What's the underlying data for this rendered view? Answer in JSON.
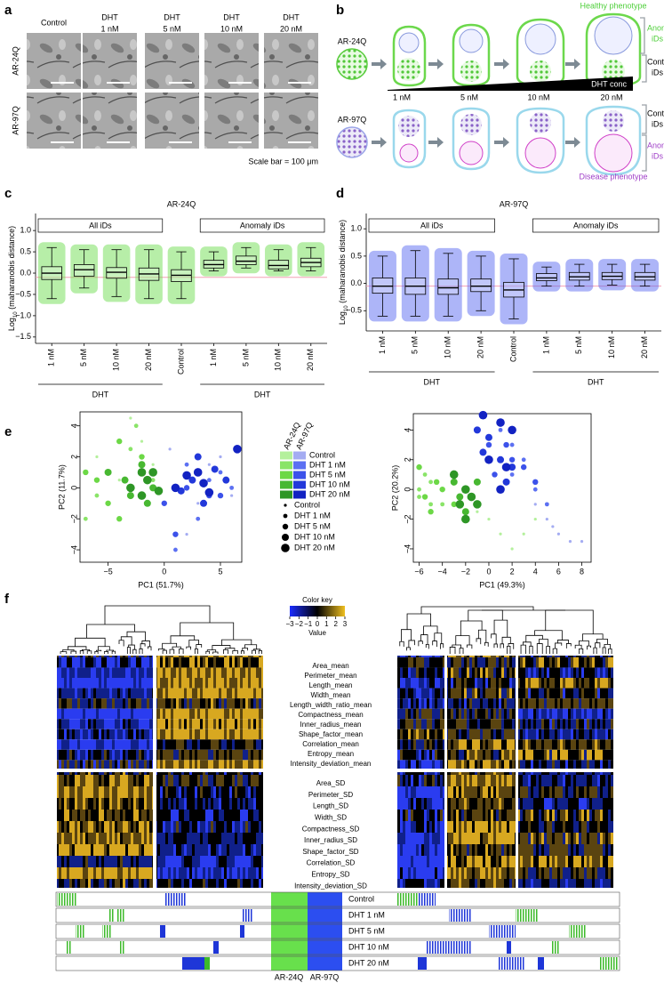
{
  "panels": {
    "a": {
      "label": "a",
      "columns": [
        [
          "Control"
        ],
        [
          "DHT",
          "1 nM"
        ],
        [
          "DHT",
          "5 nM"
        ],
        [
          "DHT",
          "10 nM"
        ],
        [
          "DHT",
          "20 nM"
        ]
      ],
      "rows": [
        "AR-24Q",
        "AR-97Q"
      ],
      "scale_note": "Scale bar = 100 μm"
    },
    "b": {
      "label": "b",
      "healthy": "Healthy phenotype",
      "disease": "Disease phenotype",
      "lines": [
        "AR-24Q",
        "AR-97Q"
      ],
      "anomaly_ids": [
        "Anomaly",
        "iDs"
      ],
      "control_ids": [
        "Control",
        "iDs"
      ],
      "conc_title": "DHT conc",
      "concs": [
        "1 nM",
        "5 nM",
        "10 nM",
        "20 nM"
      ]
    },
    "e": {
      "label": "e"
    },
    "f": {
      "label": "f",
      "color_key": {
        "title": "Color key",
        "xlabel": "Value",
        "colors": [
          "#1a2cff",
          "#000000",
          "#f0c020"
        ],
        "ticks": [
          {
            "value": -3,
            "label": "−3"
          },
          {
            "value": -2,
            "label": "−2"
          },
          {
            "value": -1,
            "label": "−1"
          },
          0,
          1,
          2,
          3
        ]
      },
      "rows_mean": [
        "Area_mean",
        "Perimeter_mean",
        "Length_mean",
        "Width_mean",
        "Length_width_ratio_mean",
        "Compactness_mean",
        "Inner_radius_mean",
        "Shape_factor_mean",
        "Correlation_mean",
        "Entropy_mean",
        "Intensity_deviation_mean"
      ],
      "rows_sd": [
        "Area_SD",
        "Perimeter_SD",
        "Length_SD",
        "Width_SD",
        "Compactness_SD",
        "Inner_radius_SD",
        "Shape_factor_SD",
        "Correlation_SD",
        "Entropy_SD",
        "Intensity_deviation_SD"
      ],
      "bar_rows": [
        "Control",
        "DHT 1 nM",
        "DHT 5 nM",
        "DHT 10 nM",
        "DHT 20 nM"
      ],
      "bar_groups": [
        "AR-24Q",
        "AR-97Q"
      ]
    }
  },
  "chart_data": [
    {
      "panel_label": "c",
      "type": "box",
      "title": "AR-24Q",
      "ylabel": [
        "Log",
        "10",
        " (maharanobis distance)"
      ],
      "strips": [
        "All iDs",
        "Anomaly iDs"
      ],
      "group_labels": [
        "DHT",
        "DHT"
      ],
      "categories": [
        "1 nM",
        "5 nM",
        "10 nM",
        "20 nM",
        "Control",
        "1 nM",
        "5 nM",
        "10 nM",
        "20 nM"
      ],
      "color": "#5fd93f",
      "boxes": [
        {
          "whislo": -0.6,
          "q1": -0.15,
          "med": 0.0,
          "q3": 0.15,
          "whishi": 0.6
        },
        {
          "whislo": -0.35,
          "q1": -0.07,
          "med": 0.08,
          "q3": 0.2,
          "whishi": 0.55
        },
        {
          "whislo": -0.55,
          "q1": -0.12,
          "med": 0.02,
          "q3": 0.13,
          "whishi": 0.55
        },
        {
          "whislo": -0.6,
          "q1": -0.17,
          "med": -0.02,
          "q3": 0.12,
          "whishi": 0.55
        },
        {
          "whislo": -0.6,
          "q1": -0.2,
          "med": -0.05,
          "q3": 0.08,
          "whishi": 0.5
        },
        {
          "whislo": 0.05,
          "q1": 0.12,
          "med": 0.2,
          "q3": 0.3,
          "whishi": 0.5
        },
        {
          "whislo": 0.12,
          "q1": 0.2,
          "med": 0.28,
          "q3": 0.4,
          "whishi": 0.6
        },
        {
          "whislo": 0.05,
          "q1": 0.1,
          "med": 0.18,
          "q3": 0.3,
          "whishi": 0.55
        },
        {
          "whislo": 0.05,
          "q1": 0.15,
          "med": 0.25,
          "q3": 0.35,
          "whishi": 0.6
        }
      ],
      "reference_line": -0.1,
      "reference_color": "#f4a0b4",
      "ylim": [
        -1.65,
        1.4
      ],
      "yticks": [
        {
          "value": 1,
          "label": "1.0"
        },
        0.5,
        {
          "value": 0,
          "label": "0.0"
        },
        {
          "value": -0.5,
          "label": "−0.5"
        },
        {
          "value": -1,
          "label": "−1.0"
        },
        {
          "value": -1.5,
          "label": "−1.5"
        }
      ]
    },
    {
      "panel_label": "d",
      "type": "box",
      "title": "AR-97Q",
      "ylabel": [
        "Log",
        "10",
        " (maharanobis distance)"
      ],
      "strips": [
        "All iDs",
        "Anomaly iDs"
      ],
      "group_labels": [
        "DHT",
        "DHT"
      ],
      "categories": [
        "1 nM",
        "5 nM",
        "10 nM",
        "20 nM",
        "Control",
        "1 nM",
        "5 nM",
        "10 nM",
        "20 nM"
      ],
      "color": "#4a5cf0",
      "boxes": [
        {
          "whislo": -0.6,
          "q1": -0.18,
          "med": -0.05,
          "q3": 0.1,
          "whishi": 0.5
        },
        {
          "whislo": -0.6,
          "q1": -0.2,
          "med": -0.05,
          "q3": 0.1,
          "whishi": 0.6
        },
        {
          "whislo": -0.6,
          "q1": -0.2,
          "med": -0.08,
          "q3": 0.08,
          "whishi": 0.55
        },
        {
          "whislo": -0.5,
          "q1": -0.15,
          "med": -0.05,
          "q3": 0.08,
          "whishi": 0.5
        },
        {
          "whislo": -0.65,
          "q1": -0.25,
          "med": -0.12,
          "q3": 0.02,
          "whishi": 0.45
        },
        {
          "whislo": -0.05,
          "q1": 0.05,
          "med": 0.1,
          "q3": 0.18,
          "whishi": 0.3
        },
        {
          "whislo": -0.05,
          "q1": 0.06,
          "med": 0.12,
          "q3": 0.2,
          "whishi": 0.35
        },
        {
          "whislo": -0.03,
          "q1": 0.07,
          "med": 0.13,
          "q3": 0.2,
          "whishi": 0.35
        },
        {
          "whislo": -0.05,
          "q1": 0.06,
          "med": 0.12,
          "q3": 0.2,
          "whishi": 0.35
        }
      ],
      "reference_line": -0.05,
      "reference_color": "#f4a0b4",
      "ylim": [
        -0.87,
        1.28
      ],
      "yticks": [
        {
          "value": 1,
          "label": "1.0"
        },
        0.5,
        {
          "value": 0,
          "label": "0.0"
        },
        {
          "value": -0.5,
          "label": "−0.5"
        }
      ]
    },
    {
      "type": "scatter",
      "xlabel": "PC1 (51.7%)",
      "ylabel": "PC2 (11.7%)",
      "groups": [
        "AR-24Q",
        "AR-97Q"
      ],
      "xlim": [
        -7.5,
        6.9
      ],
      "ylim": [
        -4.8,
        4.9
      ],
      "xticks": [
        {
          "value": -5,
          "label": "−5"
        },
        0,
        5
      ],
      "yticks": [
        4,
        2,
        0,
        {
          "value": -2,
          "label": "−2"
        },
        {
          "value": -4,
          "label": "−4"
        }
      ],
      "series": [
        {
          "name": "Control",
          "group": "AR-24Q",
          "color": "#b4f09c",
          "x": [
            -3,
            -2,
            -6,
            -1,
            -4,
            0
          ],
          "y": [
            4.5,
            3,
            2,
            1.5,
            0.5,
            -1
          ]
        },
        {
          "name": "DHT 1 nM",
          "group": "AR-24Q",
          "color": "#8ae468",
          "x": [
            -2.5,
            -7,
            -5,
            -3,
            -1,
            -6
          ],
          "y": [
            4,
            -2,
            1,
            2.5,
            0.5,
            -0.5
          ]
        },
        {
          "name": "DHT 5 nM",
          "group": "AR-24Q",
          "color": "#6cd846",
          "x": [
            -7,
            -5,
            -4,
            -2,
            -6,
            -4
          ],
          "y": [
            1,
            -1,
            3,
            2,
            0.5,
            -2
          ]
        },
        {
          "name": "DHT 10 nM",
          "group": "AR-24Q",
          "color": "#48b832",
          "x": [
            -3,
            -2,
            -1,
            -5,
            -3.5,
            -1.5
          ],
          "y": [
            -0.5,
            1.5,
            0,
            1,
            0.5,
            -1
          ]
        },
        {
          "name": "DHT 20 nM",
          "group": "AR-24Q",
          "color": "#2e9626",
          "x": [
            -3,
            -2,
            -1,
            -2,
            -0.5,
            -1.5
          ],
          "y": [
            0,
            -0.5,
            1,
            1,
            -0.2,
            0.5
          ]
        },
        {
          "name": "Control",
          "group": "AR-97Q",
          "color": "#a4acf2",
          "x": [
            2,
            6,
            4,
            3,
            5,
            0.5
          ],
          "y": [
            -3,
            -0.5,
            1.5,
            -1,
            2,
            2.5
          ]
        },
        {
          "name": "DHT 1 nM",
          "group": "AR-97Q",
          "color": "#5c70f2",
          "x": [
            3,
            5,
            2,
            6,
            4,
            1
          ],
          "y": [
            -2,
            1,
            1.5,
            0,
            0.5,
            -4
          ]
        },
        {
          "name": "DHT 5 nM",
          "group": "AR-97Q",
          "color": "#3c52ea",
          "x": [
            2,
            4,
            1,
            3,
            5,
            0
          ],
          "y": [
            0,
            -0.5,
            -3,
            1,
            -0.5,
            -1
          ]
        },
        {
          "name": "DHT 10 nM",
          "group": "AR-97Q",
          "color": "#2238da",
          "x": [
            3.5,
            2.5,
            4.5,
            1.5,
            3,
            5.5
          ],
          "y": [
            -1,
            0.5,
            1.2,
            -0.2,
            2,
            0.5
          ]
        },
        {
          "name": "DHT 20 nM",
          "group": "AR-97Q",
          "color": "#1222c2",
          "x": [
            1,
            3,
            4,
            6.5,
            2,
            3.5
          ],
          "y": [
            0,
            1,
            -0.3,
            2.5,
            0.8,
            0.3
          ]
        }
      ]
    },
    {
      "type": "scatter",
      "xlabel": "PC1 (49.3%)",
      "ylabel": "PC2 (20.2%)",
      "groups": [
        "AR-24Q",
        "AR-97Q"
      ],
      "xlim": [
        -6.5,
        8.8
      ],
      "ylim": [
        -4.9,
        5.1
      ],
      "xticks": [
        {
          "value": -6,
          "label": "−6"
        },
        {
          "value": -4,
          "label": "−4"
        },
        {
          "value": -2,
          "label": "−2"
        },
        0,
        2,
        4,
        6,
        8
      ],
      "yticks": [
        4,
        2,
        0,
        {
          "value": -2,
          "label": "−2"
        },
        {
          "value": -4,
          "label": "−4"
        }
      ],
      "series": [
        {
          "name": "Control",
          "group": "AR-24Q",
          "color": "#b4f09c",
          "x": [
            0,
            2,
            3,
            -1,
            1,
            4
          ],
          "y": [
            -2,
            -4,
            -3,
            -1.5,
            -3,
            -2
          ]
        },
        {
          "name": "DHT 1 nM",
          "group": "AR-24Q",
          "color": "#8ae468",
          "x": [
            -6,
            -5,
            -5.5,
            -4,
            -6,
            -5
          ],
          "y": [
            0,
            -1,
            1,
            -1,
            -0.5,
            0.5
          ]
        },
        {
          "name": "DHT 5 nM",
          "group": "AR-24Q",
          "color": "#6cd846",
          "x": [
            -4.5,
            -5,
            -6,
            -4,
            -5.5,
            -3
          ],
          "y": [
            0.5,
            -1.5,
            1.5,
            0,
            -0.5,
            -1
          ]
        },
        {
          "name": "DHT 10 nM",
          "group": "AR-24Q",
          "color": "#48b832",
          "x": [
            -2,
            -1,
            -3,
            -2,
            -1,
            -2.5
          ],
          "y": [
            0,
            -1,
            0.5,
            -1.5,
            0.5,
            -0.5
          ]
        },
        {
          "name": "DHT 20 nM",
          "group": "AR-24Q",
          "color": "#2e9626",
          "x": [
            -2,
            -1,
            -3,
            -2,
            -1.5,
            -2.5
          ],
          "y": [
            -2,
            -1,
            1,
            0,
            -0.5,
            -1
          ]
        },
        {
          "name": "Control",
          "group": "AR-97Q",
          "color": "#a4acf2",
          "x": [
            5,
            6,
            7,
            8,
            5.5,
            4
          ],
          "y": [
            -2,
            -3,
            -3.5,
            -3.5,
            -2.5,
            -1
          ]
        },
        {
          "name": "DHT 1 nM",
          "group": "AR-97Q",
          "color": "#5c70f2",
          "x": [
            1,
            2,
            3,
            4,
            5,
            2
          ],
          "y": [
            4,
            3,
            2,
            0,
            -1,
            1
          ]
        },
        {
          "name": "DHT 5 nM",
          "group": "AR-97Q",
          "color": "#3c52ea",
          "x": [
            0,
            1.5,
            3,
            4,
            0.5,
            2
          ],
          "y": [
            3,
            3,
            1.5,
            0.5,
            1,
            2
          ]
        },
        {
          "name": "DHT 10 nM",
          "group": "AR-97Q",
          "color": "#2238da",
          "x": [
            -1,
            0,
            1,
            2,
            -0.5,
            1.5
          ],
          "y": [
            4,
            3.5,
            2,
            1.5,
            2.5,
            0.5
          ]
        },
        {
          "name": "DHT 20 nM",
          "group": "AR-97Q",
          "color": "#1222c2",
          "x": [
            -0.5,
            1,
            2,
            0,
            1.5,
            1
          ],
          "y": [
            5,
            4.5,
            4,
            2,
            1.5,
            0
          ]
        }
      ]
    }
  ]
}
